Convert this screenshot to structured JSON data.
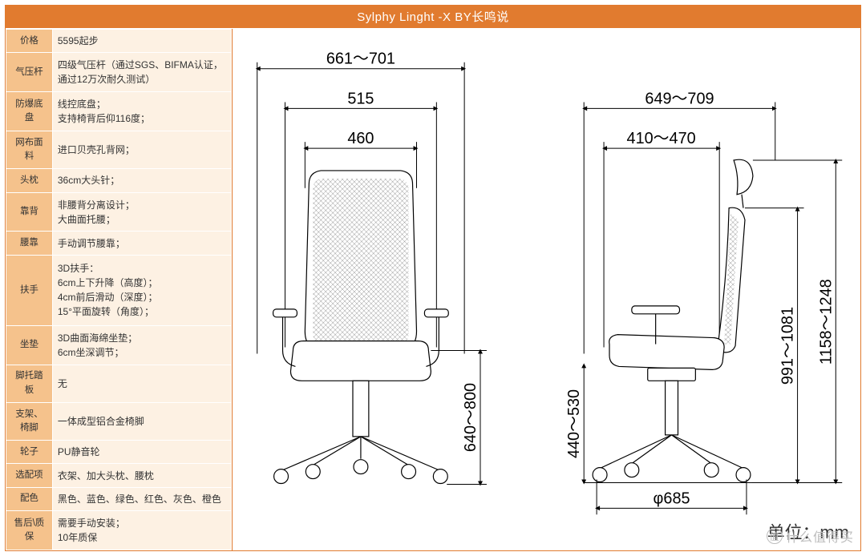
{
  "title": "Sylphy Linght -X    BY长鸣说",
  "colors": {
    "accent": "#e17b2f",
    "label_bg": "#f5c28c",
    "value_bg": "#fdf1e3",
    "border": "#ffffff",
    "text": "#333333"
  },
  "specs": [
    {
      "label": "价格",
      "value": "5595起步"
    },
    {
      "label": "气压杆",
      "value": "四级气压杆（通过SGS、BIFMA认证，通过12万次耐久测试）"
    },
    {
      "label": "防爆底盘",
      "value": "线控底盘；\n支持椅背后仰116度；"
    },
    {
      "label": "网布面料",
      "value": "进口贝壳孔背网；"
    },
    {
      "label": "头枕",
      "value": "36cm大头针；"
    },
    {
      "label": "靠背",
      "value": "非腰背分离设计；\n大曲面托腰；"
    },
    {
      "label": "腰靠",
      "value": "手动调节腰靠；"
    },
    {
      "label": "扶手",
      "value": "3D扶手：\n6cm上下升降（高度）；\n4cm前后滑动（深度）；\n15°平面旋转（角度）；"
    },
    {
      "label": "坐垫",
      "value": "3D曲面海绵坐垫；\n6cm坐深调节；"
    },
    {
      "label": "脚托踏板",
      "value": "无"
    },
    {
      "label": "支架、椅脚",
      "value": "一体成型铝合金椅脚"
    },
    {
      "label": "轮子",
      "value": "PU静音轮"
    },
    {
      "label": "选配项",
      "value": "衣架、加大头枕、腰枕"
    },
    {
      "label": "配色",
      "value": "黑色、蓝色、绿色、红色、灰色、橙色"
    },
    {
      "label": "售后\\质保",
      "value": "需要手动安装；\n10年质保"
    }
  ],
  "diagram": {
    "unit_label": "单位：mm",
    "front": {
      "dim_top1": "661～701",
      "dim_top2": "515",
      "dim_top3": "460",
      "dim_height": "640～800"
    },
    "side": {
      "dim_top1": "649～709",
      "dim_top2": "410～470",
      "dim_h1": "440～530",
      "dim_h2": "991～1081",
      "dim_h3": "1158～1248",
      "dim_base": "φ685"
    }
  },
  "watermark": "什么值得买"
}
